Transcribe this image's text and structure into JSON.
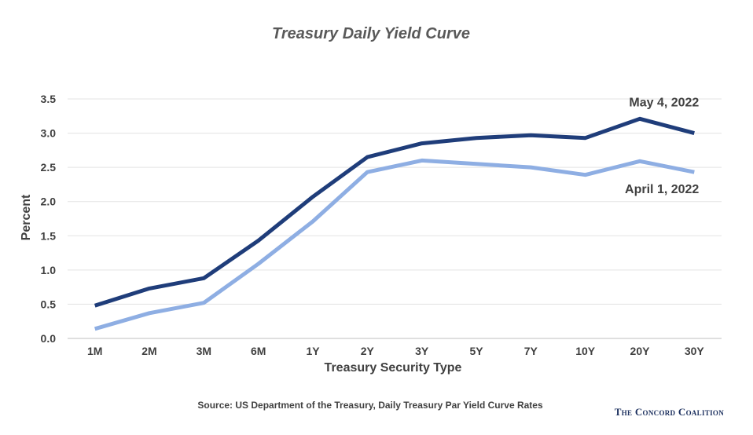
{
  "chart_data": {
    "type": "line",
    "title": "Treasury Daily Yield Curve",
    "xlabel": "Treasury Security Type",
    "ylabel": "Percent",
    "ylim": [
      0,
      3.5
    ],
    "yticks": [
      "0.0",
      "0.5",
      "1.0",
      "1.5",
      "2.0",
      "2.5",
      "3.0",
      "3.5"
    ],
    "grid": true,
    "categories": [
      "1M",
      "2M",
      "3M",
      "6M",
      "1Y",
      "2Y",
      "3Y",
      "5Y",
      "7Y",
      "10Y",
      "20Y",
      "30Y"
    ],
    "series": [
      {
        "name": "May 4, 2022",
        "color": "#1f3d7a",
        "values": [
          0.48,
          0.73,
          0.88,
          1.43,
          2.07,
          2.65,
          2.85,
          2.93,
          2.97,
          2.93,
          3.21,
          3.0
        ]
      },
      {
        "name": "April 1, 2022",
        "color": "#8eaee3",
        "values": [
          0.14,
          0.37,
          0.52,
          1.09,
          1.71,
          2.43,
          2.6,
          2.55,
          2.5,
          2.39,
          2.59,
          2.43
        ]
      }
    ]
  },
  "footer": {
    "source": "Source: US Department of the Treasury, Daily Treasury Par Yield Curve Rates",
    "brand": "The Concord Coalition"
  }
}
